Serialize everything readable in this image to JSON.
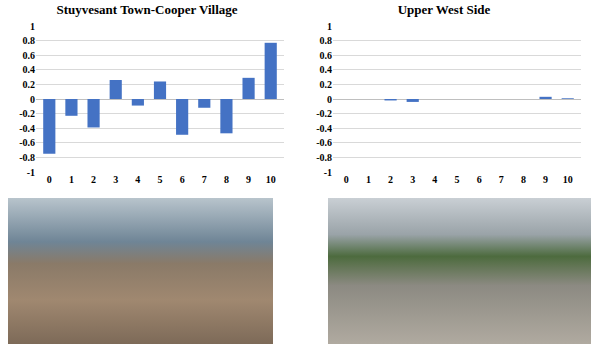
{
  "chart_data": [
    {
      "type": "bar",
      "title": "Stuyvesant Town-Cooper Village",
      "categories": [
        "0",
        "1",
        "2",
        "3",
        "4",
        "5",
        "6",
        "7",
        "8",
        "9",
        "10"
      ],
      "values": [
        -0.75,
        -0.23,
        -0.39,
        0.26,
        -0.09,
        0.24,
        -0.49,
        -0.12,
        -0.47,
        0.29,
        0.77
      ],
      "color": "#4472c4",
      "ylim": [
        -1,
        1
      ],
      "yticks": [
        -1,
        -0.8,
        -0.6,
        -0.4,
        -0.2,
        0,
        0.2,
        0.4,
        0.6,
        0.8,
        1
      ],
      "grid": true
    },
    {
      "type": "bar",
      "title": "Upper West Side",
      "categories": [
        "0",
        "1",
        "2",
        "3",
        "4",
        "5",
        "6",
        "7",
        "8",
        "9",
        "10"
      ],
      "values": [
        0,
        0,
        -0.02,
        -0.04,
        0,
        0,
        0,
        0,
        0,
        0.03,
        0.01
      ],
      "color": "#4472c4",
      "ylim": [
        -1,
        1
      ],
      "yticks": [
        -1,
        -0.8,
        -0.6,
        -0.4,
        -0.2,
        0,
        0.2,
        0.4,
        0.6,
        0.8,
        1
      ],
      "grid": true
    }
  ]
}
